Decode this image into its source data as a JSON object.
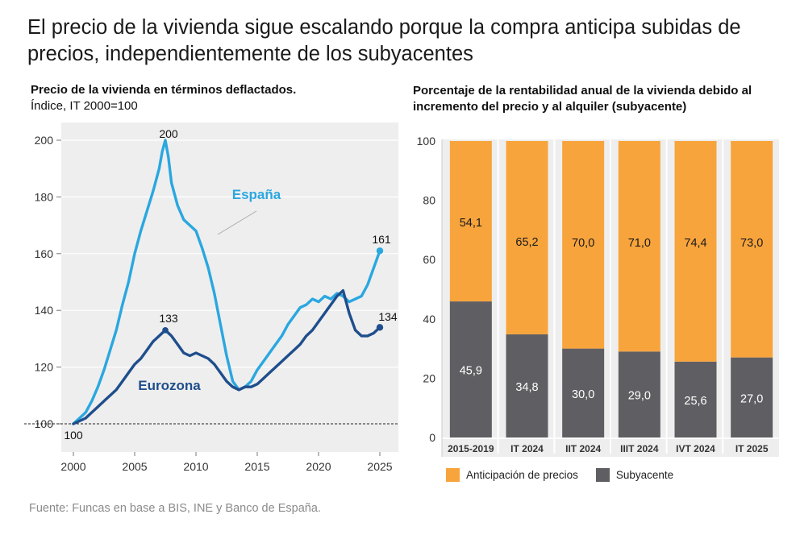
{
  "title": "El precio de la vivienda sigue escalando porque la compra anticipa subidas de precios, independientemente de los subyacentes",
  "source": "Fuente: Funcas en base a BIS, INE y Banco de España.",
  "colors": {
    "espana": "#2aa7e0",
    "eurozona": "#1f4e8c",
    "anticipacion": "#f8a43c",
    "subyacente": "#5f5f63",
    "grid_bg": "#eeeeee"
  },
  "chart_data": [
    {
      "type": "line",
      "title": "Precio de la vivienda en términos deflactados.",
      "subtitle": "Índice, IT 2000=100",
      "ylim": [
        95,
        207
      ],
      "xlim": [
        1998.8,
        2026.8
      ],
      "y_ticks": [
        100,
        120,
        140,
        160,
        180,
        200
      ],
      "x_ticks": [
        2000,
        2005,
        2010,
        2015,
        2020,
        2025
      ],
      "baseline": 100,
      "series": [
        {
          "name": "España",
          "x": [
            2000.0,
            2000.5,
            2001.0,
            2001.5,
            2002.0,
            2002.5,
            2003.0,
            2003.5,
            2004.0,
            2004.5,
            2005.0,
            2005.5,
            2006.0,
            2006.5,
            2007.0,
            2007.25,
            2007.5,
            2007.75,
            2008.0,
            2008.5,
            2009.0,
            2009.5,
            2010.0,
            2010.5,
            2011.0,
            2011.5,
            2012.0,
            2012.5,
            2013.0,
            2013.5,
            2014.0,
            2014.5,
            2015.0,
            2015.5,
            2016.0,
            2016.5,
            2017.0,
            2017.5,
            2018.0,
            2018.5,
            2019.0,
            2019.5,
            2020.0,
            2020.5,
            2021.0,
            2021.5,
            2022.0,
            2022.5,
            2023.0,
            2023.5,
            2024.0,
            2024.5,
            2025.0
          ],
          "values": [
            100,
            102,
            104,
            108,
            113,
            119,
            126,
            133,
            142,
            150,
            160,
            168,
            175,
            182,
            190,
            196,
            200,
            194,
            185,
            177,
            172,
            170,
            168,
            162,
            155,
            146,
            135,
            124,
            115,
            112,
            113,
            115,
            119,
            122,
            125,
            128,
            131,
            135,
            138,
            141,
            142,
            144,
            143,
            145,
            144,
            146,
            145,
            143,
            144,
            145,
            149,
            155,
            161
          ]
        },
        {
          "name": "Eurozona",
          "x": [
            2000.0,
            2000.5,
            2001.0,
            2001.5,
            2002.0,
            2002.5,
            2003.0,
            2003.5,
            2004.0,
            2004.5,
            2005.0,
            2005.5,
            2006.0,
            2006.5,
            2007.0,
            2007.5,
            2008.0,
            2008.5,
            2009.0,
            2009.5,
            2010.0,
            2010.5,
            2011.0,
            2011.5,
            2012.0,
            2012.5,
            2013.0,
            2013.5,
            2014.0,
            2014.5,
            2015.0,
            2015.5,
            2016.0,
            2016.5,
            2017.0,
            2017.5,
            2018.0,
            2018.5,
            2019.0,
            2019.5,
            2020.0,
            2020.5,
            2021.0,
            2021.5,
            2022.0,
            2022.5,
            2023.0,
            2023.5,
            2024.0,
            2024.5,
            2025.0
          ],
          "values": [
            100,
            101,
            102,
            104,
            106,
            108,
            110,
            112,
            115,
            118,
            121,
            123,
            126,
            129,
            131,
            133,
            131,
            128,
            125,
            124,
            125,
            124,
            123,
            121,
            118,
            115,
            113,
            112,
            113,
            113,
            114,
            116,
            118,
            120,
            122,
            124,
            126,
            128,
            131,
            133,
            136,
            139,
            142,
            145,
            147,
            139,
            133,
            131,
            131,
            132,
            134
          ]
        }
      ],
      "series_labels": [
        "España",
        "Eurozona"
      ],
      "annotations": [
        {
          "text": "200",
          "x": 2007.5,
          "y": 200
        },
        {
          "text": "133",
          "x": 2007.5,
          "y": 133
        },
        {
          "text": "161",
          "x": 2025.0,
          "y": 161
        },
        {
          "text": "134",
          "x": 2025.0,
          "y": 134
        },
        {
          "text": "100",
          "x": 2000.0,
          "y": 100
        }
      ]
    },
    {
      "type": "bar",
      "stacked": true,
      "title": "Porcentaje de la rentabilidad anual de la vivienda debido al incremento del precio y al alquiler (subyacente)",
      "ylim": [
        0,
        100
      ],
      "y_ticks": [
        0,
        20,
        40,
        60,
        80,
        100
      ],
      "categories": [
        "2015-2019",
        "IT 2024",
        "IIT 2024",
        "IIIT 2024",
        "IVT 2024",
        "IT 2025"
      ],
      "series": [
        {
          "name": "Subyacente",
          "values": [
            45.9,
            34.8,
            30.0,
            29.0,
            25.6,
            27.0
          ],
          "labels": [
            "45,9",
            "34,8",
            "30,0",
            "29,0",
            "25,6",
            "27,0"
          ]
        },
        {
          "name": "Anticipación de precios",
          "values": [
            54.1,
            65.2,
            70.0,
            71.0,
            74.4,
            73.0
          ],
          "labels": [
            "54,1",
            "65,2",
            "70,0",
            "71,0",
            "74,4",
            "73,0"
          ]
        }
      ],
      "legend": [
        "Anticipación de precios",
        "Subyacente"
      ],
      "legend_position": "bottom"
    }
  ]
}
